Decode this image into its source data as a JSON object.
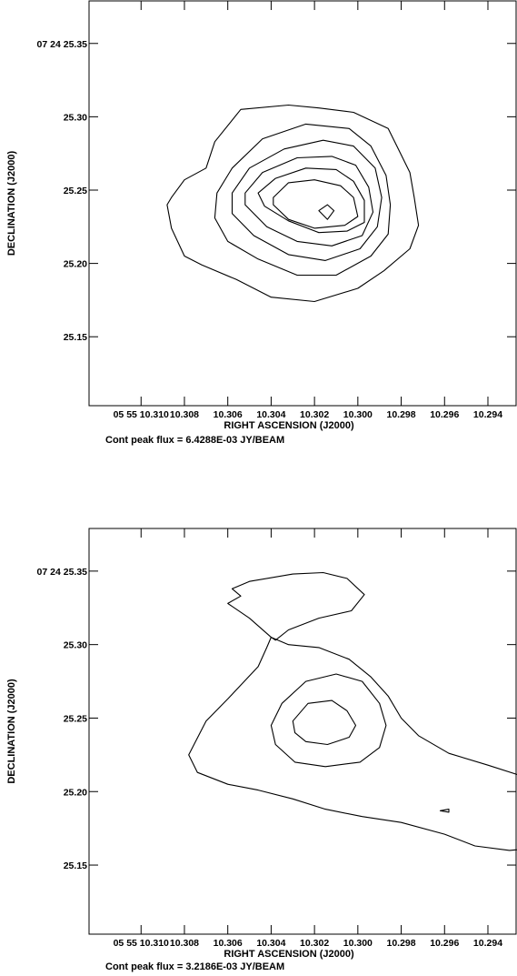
{
  "chart_data": [
    {
      "type": "contour",
      "xlabel": "RIGHT ASCENSION (J2000)",
      "ylabel": "DECLINATION (J2000)",
      "x_tick_labels": [
        "05 55 10.310",
        "10.308",
        "10.306",
        "10.304",
        "10.302",
        "10.300",
        "10.298",
        "10.296",
        "10.294"
      ],
      "y_tick_labels": [
        "07 24 25.35",
        "25.30",
        "25.25",
        "25.20",
        "25.15"
      ],
      "x_ticks_s": [
        10.31,
        10.308,
        10.306,
        10.304,
        10.302,
        10.3,
        10.298,
        10.296,
        10.294
      ],
      "y_ticks_arcsec": [
        25.35,
        25.3,
        25.25,
        25.2,
        25.15
      ],
      "xlim_s": [
        10.3124,
        10.2927
      ],
      "ylim_arcsec": [
        25.103,
        25.379
      ],
      "footer": "Cont peak flux =  6.4288E-03 JY/BEAM",
      "contours": [
        [
          [
            10.3086,
            25.245
          ],
          [
            10.308,
            25.257
          ],
          [
            10.307,
            25.265
          ],
          [
            10.3066,
            25.283
          ],
          [
            10.3054,
            25.305
          ],
          [
            10.3032,
            25.308
          ],
          [
            10.3018,
            25.306
          ],
          [
            10.3002,
            25.303
          ],
          [
            10.2986,
            25.292
          ],
          [
            10.2982,
            25.28
          ],
          [
            10.2976,
            25.262
          ],
          [
            10.2974,
            25.245
          ],
          [
            10.2972,
            25.226
          ],
          [
            10.2976,
            25.21
          ],
          [
            10.2988,
            25.195
          ],
          [
            10.3,
            25.183
          ],
          [
            10.302,
            25.174
          ],
          [
            10.304,
            25.177
          ],
          [
            10.3056,
            25.189
          ],
          [
            10.3072,
            25.199
          ],
          [
            10.308,
            25.205
          ],
          [
            10.3086,
            25.224
          ],
          [
            10.3088,
            25.24
          ],
          [
            10.3086,
            25.245
          ]
        ],
        [
          [
            10.3065,
            25.248
          ],
          [
            10.3058,
            25.265
          ],
          [
            10.3044,
            25.285
          ],
          [
            10.3024,
            25.295
          ],
          [
            10.3004,
            25.292
          ],
          [
            10.2994,
            25.28
          ],
          [
            10.2987,
            25.26
          ],
          [
            10.2985,
            25.24
          ],
          [
            10.2986,
            25.22
          ],
          [
            10.2994,
            25.205
          ],
          [
            10.301,
            25.192
          ],
          [
            10.3028,
            25.192
          ],
          [
            10.3046,
            25.203
          ],
          [
            10.306,
            25.215
          ],
          [
            10.3066,
            25.231
          ],
          [
            10.3065,
            25.248
          ]
        ],
        [
          [
            10.3058,
            25.248
          ],
          [
            10.305,
            25.265
          ],
          [
            10.3034,
            25.278
          ],
          [
            10.3016,
            25.284
          ],
          [
            10.3002,
            25.28
          ],
          [
            10.2992,
            25.265
          ],
          [
            10.2989,
            25.245
          ],
          [
            10.2991,
            25.225
          ],
          [
            10.2999,
            25.21
          ],
          [
            10.3015,
            25.202
          ],
          [
            10.3032,
            25.206
          ],
          [
            10.3048,
            25.219
          ],
          [
            10.3058,
            25.234
          ],
          [
            10.3058,
            25.248
          ]
        ],
        [
          [
            10.3052,
            25.248
          ],
          [
            10.3044,
            25.262
          ],
          [
            10.3028,
            25.272
          ],
          [
            10.3012,
            25.273
          ],
          [
            10.3001,
            25.267
          ],
          [
            10.2995,
            25.252
          ],
          [
            10.2993,
            25.235
          ],
          [
            10.2998,
            25.219
          ],
          [
            10.3012,
            25.212
          ],
          [
            10.3028,
            25.215
          ],
          [
            10.3042,
            25.225
          ],
          [
            10.3052,
            25.24
          ],
          [
            10.3052,
            25.248
          ]
        ],
        [
          [
            10.3046,
            25.248
          ],
          [
            10.3038,
            25.258
          ],
          [
            10.3024,
            25.265
          ],
          [
            10.301,
            25.264
          ],
          [
            10.3002,
            25.256
          ],
          [
            10.2997,
            25.243
          ],
          [
            10.2997,
            25.228
          ],
          [
            10.3005,
            25.222
          ],
          [
            10.3018,
            25.221
          ],
          [
            10.3032,
            25.229
          ],
          [
            10.3043,
            25.239
          ],
          [
            10.3046,
            25.248
          ]
        ],
        [
          [
            10.3039,
            25.245
          ],
          [
            10.3032,
            25.255
          ],
          [
            10.302,
            25.257
          ],
          [
            10.3008,
            25.253
          ],
          [
            10.3002,
            25.245
          ],
          [
            10.3,
            25.232
          ],
          [
            10.3006,
            25.226
          ],
          [
            10.302,
            25.224
          ],
          [
            10.3032,
            25.23
          ],
          [
            10.3039,
            25.24
          ],
          [
            10.3039,
            25.245
          ]
        ],
        [
          [
            10.3018,
            25.236
          ],
          [
            10.3014,
            25.24
          ],
          [
            10.3011,
            25.236
          ],
          [
            10.3014,
            25.23
          ],
          [
            10.3018,
            25.236
          ]
        ]
      ]
    },
    {
      "type": "contour",
      "xlabel": "RIGHT ASCENSION (J2000)",
      "ylabel": "DECLINATION (J2000)",
      "x_tick_labels": [
        "05 55 10.310",
        "10.308",
        "10.306",
        "10.304",
        "10.302",
        "10.300",
        "10.298",
        "10.296",
        "10.294"
      ],
      "y_tick_labels": [
        "07 24 25.35",
        "25.30",
        "25.25",
        "25.20",
        "25.15"
      ],
      "x_ticks_s": [
        10.31,
        10.308,
        10.306,
        10.304,
        10.302,
        10.3,
        10.298,
        10.296,
        10.294
      ],
      "y_ticks_arcsec": [
        25.35,
        25.3,
        25.25,
        25.2,
        25.15
      ],
      "xlim_s": [
        10.3124,
        10.2927
      ],
      "ylim_arcsec": [
        25.103,
        25.379
      ],
      "footer": "Cont peak flux =  3.2186E-03 JY/BEAM",
      "contours": [
        [
          [
            10.3058,
            25.338
          ],
          [
            10.305,
            25.343
          ],
          [
            10.303,
            25.348
          ],
          [
            10.3016,
            25.349
          ],
          [
            10.3005,
            25.345
          ],
          [
            10.2997,
            25.334
          ],
          [
            10.3003,
            25.323
          ],
          [
            10.3018,
            25.318
          ],
          [
            10.3032,
            25.31
          ],
          [
            10.3038,
            25.303
          ],
          [
            10.304,
            25.305
          ],
          [
            10.305,
            25.318
          ],
          [
            10.306,
            25.328
          ],
          [
            10.3054,
            25.333
          ]
        ],
        [
          [
            10.304,
            25.305
          ],
          [
            10.3032,
            25.3
          ],
          [
            10.3018,
            25.298
          ],
          [
            10.3004,
            25.29
          ],
          [
            10.2994,
            25.278
          ],
          [
            10.2986,
            25.265
          ],
          [
            10.298,
            25.25
          ],
          [
            10.2972,
            25.238
          ],
          [
            10.2958,
            25.226
          ],
          [
            10.294,
            25.218
          ],
          [
            10.2923,
            25.21
          ],
          [
            10.2908,
            25.205
          ],
          [
            10.2898,
            25.2
          ],
          [
            10.2892,
            25.195
          ],
          [
            10.2893,
            25.18
          ],
          [
            10.29,
            25.17
          ],
          [
            10.2915,
            25.162
          ],
          [
            10.293,
            25.16
          ],
          [
            10.2946,
            25.163
          ],
          [
            10.296,
            25.171
          ],
          [
            10.298,
            25.179
          ],
          [
            10.2998,
            25.183
          ],
          [
            10.3015,
            25.188
          ],
          [
            10.303,
            25.195
          ],
          [
            10.3046,
            25.201
          ],
          [
            10.306,
            25.205
          ],
          [
            10.3074,
            25.213
          ],
          [
            10.3078,
            25.225
          ],
          [
            10.307,
            25.248
          ],
          [
            10.306,
            25.263
          ],
          [
            10.3046,
            25.285
          ],
          [
            10.3042,
            25.298
          ],
          [
            10.304,
            25.305
          ]
        ],
        [
          [
            10.304,
            25.245
          ],
          [
            10.3035,
            25.26
          ],
          [
            10.3024,
            25.275
          ],
          [
            10.301,
            25.28
          ],
          [
            10.2998,
            25.275
          ],
          [
            10.299,
            25.26
          ],
          [
            10.2987,
            25.245
          ],
          [
            10.299,
            25.23
          ],
          [
            10.2999,
            25.22
          ],
          [
            10.3015,
            25.217
          ],
          [
            10.3029,
            25.22
          ],
          [
            10.3038,
            25.232
          ],
          [
            10.304,
            25.245
          ]
        ],
        [
          [
            10.303,
            25.248
          ],
          [
            10.3023,
            25.26
          ],
          [
            10.3012,
            25.262
          ],
          [
            10.3005,
            25.255
          ],
          [
            10.3001,
            25.245
          ],
          [
            10.3004,
            25.237
          ],
          [
            10.3014,
            25.232
          ],
          [
            10.3024,
            25.234
          ],
          [
            10.3029,
            25.24
          ],
          [
            10.303,
            25.248
          ]
        ],
        [
          [
            10.2962,
            25.187
          ],
          [
            10.2958,
            25.188
          ],
          [
            10.2958,
            25.186
          ],
          [
            10.2962,
            25.187
          ]
        ]
      ]
    }
  ]
}
